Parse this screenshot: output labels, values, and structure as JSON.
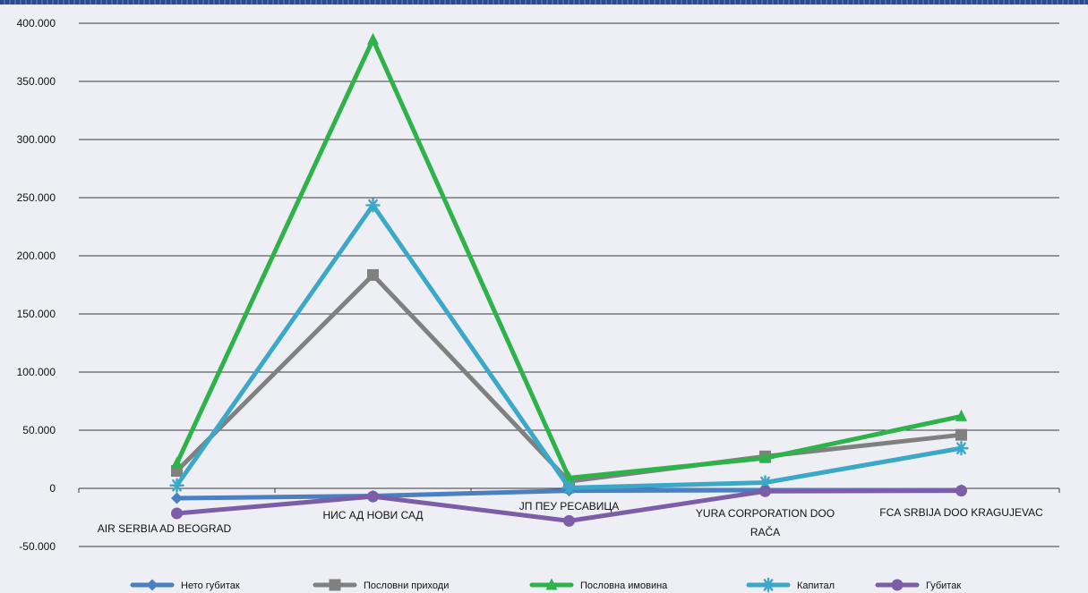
{
  "chart_data": {
    "type": "line",
    "title": "",
    "xlabel": "",
    "ylabel": "",
    "ylim": [
      -50000,
      400000
    ],
    "yticks": [
      400000,
      350000,
      300000,
      250000,
      200000,
      150000,
      100000,
      50000,
      0,
      -50000
    ],
    "ytick_labels": [
      "400.000",
      "350.000",
      "300.000",
      "250.000",
      "200.000",
      "150.000",
      "100.000",
      "50.000",
      "0",
      "-50.000"
    ],
    "grid": true,
    "legend_position": "bottom",
    "categories": [
      [
        "AIR SERBIA AD BEOGRAD"
      ],
      [
        "НИС АД НОВИ САД"
      ],
      [
        "ЈП ПЕУ РЕСАВИЦА"
      ],
      [
        "YURA CORPORATION DOO",
        "RAČA"
      ],
      [
        "FCA SRBIJA DOO KRAGUJEVAC"
      ]
    ],
    "series": [
      {
        "name": "Нето губитак",
        "color": "#4a7fc1",
        "marker": "diamond",
        "values": [
          -8500,
          -6500,
          -2000,
          -1500,
          -1500
        ]
      },
      {
        "name": "Пословни приходи",
        "color": "#808080",
        "marker": "square",
        "values": [
          15000,
          183500,
          6000,
          27500,
          46000
        ]
      },
      {
        "name": "Пословна имовина",
        "color": "#2db34a",
        "marker": "triangle",
        "values": [
          21500,
          386000,
          9000,
          26000,
          62000
        ]
      },
      {
        "name": "Капитал",
        "color": "#3ca8c8",
        "marker": "asterisk",
        "values": [
          2500,
          243500,
          500,
          5000,
          34500
        ]
      },
      {
        "name": "Губитак",
        "color": "#7b5ea7",
        "marker": "circle",
        "values": [
          -21500,
          -7000,
          -28000,
          -2500,
          -2000
        ]
      }
    ]
  }
}
